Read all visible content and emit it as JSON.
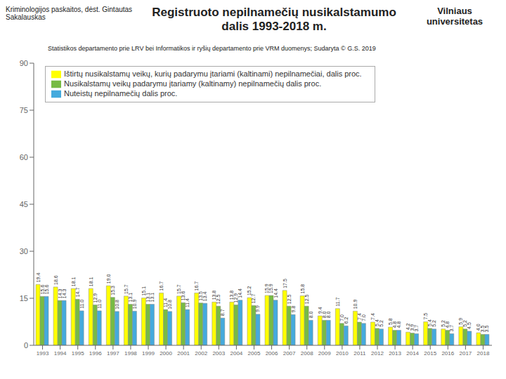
{
  "chart_data": {
    "type": "bar",
    "title": "Registruoto nepilnamečių nusikalstamumo\ndalis 1993-2018 m.",
    "subtitle": "Statistikos departamento prie LRV bei Informatikos ir ryšių departamento prie VRM duomenys; Sudaryta © G.S. 2019",
    "annotations": [
      "Kriminologijos paskaitos, dėst. Gintautas Sakalauskas",
      "Vilniaus\nuniversitetas"
    ],
    "categories": [
      "1993",
      "1994",
      "1995",
      "1996",
      "1997",
      "1998",
      "1999",
      "2000",
      "2001",
      "2002",
      "2003",
      "2004",
      "2005",
      "2006",
      "2007",
      "2008",
      "2009",
      "2010",
      "2011",
      "2012",
      "2013",
      "2014",
      "2015",
      "2016",
      "2017",
      "2018"
    ],
    "series": [
      {
        "name": "Ištirtų nusikalstamų veikų, kurių padarymu įtariami (kaltinami) nepilnamečiai, dalis proc.",
        "color": "#ffff00",
        "values": [
          19.4,
          18.6,
          18.1,
          18.1,
          19.0,
          15.7,
          15.1,
          16.7,
          15.7,
          16.7,
          13.8,
          13.8,
          15.2,
          15.9,
          17.5,
          15.8,
          9.4,
          11.7,
          10.9,
          7.4,
          5.8,
          4.2,
          7.5,
          5.2,
          5.9,
          4.0
        ],
        "value_labels": [
          "19.4",
          "18.6",
          "18.1",
          "18.1",
          "19.0",
          "15.7",
          "15.1",
          "16.7",
          "15.7",
          "16.7",
          "13.8",
          "13.8",
          "15.2",
          "15.9",
          "17.5",
          "15.8",
          "9.4",
          "11.7",
          "10.9",
          "7.4",
          "5.8",
          "4.2",
          "7.5",
          "5.2",
          "5.9",
          "4.0"
        ]
      },
      {
        "name": "Nusikalstamų veikų padarymu įtariamy (kaltinamy) nepilnamečių dalis proc.",
        "color": "#77bb44",
        "values": [
          15.6,
          14.3,
          14.7,
          12.9,
          15.3,
          13.1,
          13.1,
          11.4,
          13.6,
          13.5,
          12.5,
          12.9,
          12.7,
          15.9,
          12.5,
          12.5,
          8.0,
          7.0,
          7.4,
          5.4,
          4.8,
          3.9,
          5.4,
          4.8,
          5.2,
          3.5
        ],
        "value_labels": [
          "15.6",
          "14.3",
          "14.7",
          "12.9",
          "15.3",
          "13.1",
          "13.1",
          "11.4",
          "13.6",
          "13.5",
          "12.5",
          "12.9",
          "12.7",
          "15.9",
          "12.5",
          "12.5",
          "8.0",
          "7.0",
          "7.4",
          "5.4",
          "4.8",
          "3.9",
          "5.4",
          "4.8",
          "5.2",
          "3.5"
        ]
      },
      {
        "name": "Nuteistų nepilnamečių dalis proc.",
        "color": "#44aadd",
        "values": [
          15.6,
          14.3,
          11.0,
          11.0,
          10.8,
          10.9,
          13.1,
          10.8,
          11.4,
          13.4,
          8.7,
          14.4,
          9.9,
          14.4,
          9.8,
          8.0,
          8.0,
          6.2,
          7.0,
          5.2,
          4.8,
          3.7,
          5.2,
          3.7,
          4.5,
          3.5
        ],
        "value_labels": [
          "15.6",
          "14.3",
          "11.0",
          "11.0",
          "10.8",
          "10.9",
          "13.1",
          "10.8",
          "11.4",
          "13.4",
          "8.7",
          "14.4",
          "9.9",
          "14.4",
          "9.8",
          "8.0",
          "8.0",
          "6.2",
          "7.0",
          "5.2",
          "4.8",
          "3.7",
          "5.2",
          "3.7",
          "4.5",
          "3.5"
        ]
      }
    ],
    "ylim": [
      0,
      90
    ],
    "yticks": [
      0,
      15,
      30,
      45,
      60,
      75,
      90
    ],
    "data_labels": true,
    "legend": "upper left",
    "grid": false
  }
}
